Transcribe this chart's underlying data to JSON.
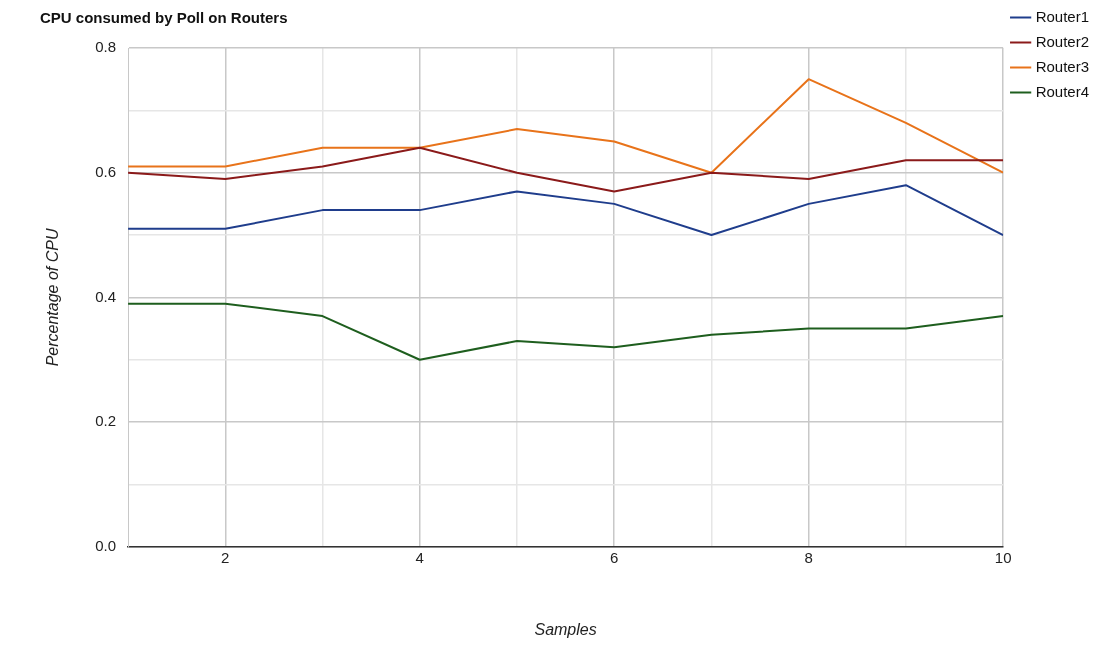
{
  "chart_data": {
    "type": "line",
    "title": "CPU consumed by Poll on Routers",
    "xlabel": "Samples",
    "ylabel": "Percentage of CPU",
    "x": [
      1,
      2,
      3,
      4,
      5,
      6,
      7,
      8,
      9,
      10
    ],
    "xlim": [
      1,
      10
    ],
    "xticks": [
      {
        "value": 2,
        "label": "2"
      },
      {
        "value": 3,
        "label": null
      },
      {
        "value": 4,
        "label": "4"
      },
      {
        "value": 5,
        "label": null
      },
      {
        "value": 6,
        "label": "6"
      },
      {
        "value": 7,
        "label": null
      },
      {
        "value": 8,
        "label": "8"
      },
      {
        "value": 9,
        "label": null
      },
      {
        "value": 10,
        "label": "10"
      }
    ],
    "ylim": [
      0,
      0.8
    ],
    "yticks": [
      {
        "value": 0,
        "label": "0.0"
      },
      {
        "value": 0.1,
        "label": null
      },
      0.2,
      {
        "value": 0.3,
        "label": null
      },
      0.4,
      {
        "value": 0.5,
        "label": null
      },
      0.6,
      {
        "value": 0.7,
        "label": null
      },
      0.8
    ],
    "grid": true,
    "legend": "top right",
    "marker": "none",
    "line_style": "solid",
    "series": [
      {
        "name": "Router1",
        "color": "#1f3d8c",
        "values": [
          0.51,
          0.51,
          0.54,
          0.54,
          0.57,
          0.55,
          0.5,
          0.55,
          0.58,
          0.5
        ]
      },
      {
        "name": "Router2",
        "color": "#8b1a1a",
        "values": [
          0.6,
          0.59,
          0.61,
          0.64,
          0.6,
          0.57,
          0.6,
          0.59,
          0.62,
          0.62
        ]
      },
      {
        "name": "Router3",
        "color": "#e8731a",
        "values": [
          0.61,
          0.61,
          0.64,
          0.64,
          0.67,
          0.65,
          0.6,
          0.75,
          0.68,
          0.6
        ]
      },
      {
        "name": "Router4",
        "color": "#1e5e1e",
        "values": [
          0.39,
          0.39,
          0.37,
          0.3,
          0.33,
          0.32,
          0.34,
          0.35,
          0.35,
          0.37
        ]
      }
    ]
  }
}
